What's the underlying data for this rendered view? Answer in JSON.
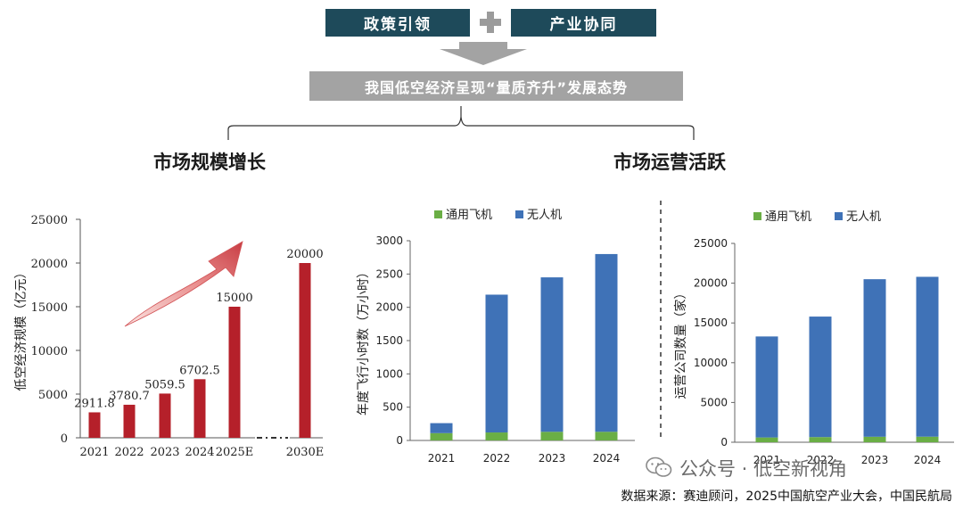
{
  "header": {
    "box_left": "政策引领",
    "box_right": "产业协同",
    "banner": "我国低空经济呈现“量质齐升”发展态势"
  },
  "sections": {
    "left_title": "市场规模增长",
    "right_title": "市场运营活跃"
  },
  "chart_data": [
    {
      "type": "bar",
      "title": "",
      "xlabel": "",
      "ylabel": "低空经济规模（亿元）",
      "categories": [
        "2021",
        "2022",
        "2023",
        "2024",
        "2025E",
        "2030E"
      ],
      "values": [
        2911.8,
        3780.7,
        5059.5,
        6702.5,
        15000,
        20000
      ],
      "data_labels": [
        "2911.8",
        "3780.7",
        "5059.5",
        "6702.5",
        "15000",
        "20000"
      ],
      "ylim": [
        0,
        25000
      ],
      "yticks": [
        "0",
        "5000",
        "10000",
        "15000",
        "20000",
        "25000"
      ],
      "color": "#b5202a",
      "grid": false,
      "axis_break": true
    },
    {
      "type": "bar",
      "stacked": true,
      "title": "",
      "xlabel": "",
      "ylabel": "年度飞行小时数（万小时）",
      "categories": [
        "2021",
        "2022",
        "2023",
        "2024"
      ],
      "series": [
        {
          "name": "通用飞机",
          "values": [
            110,
            120,
            130,
            130
          ],
          "color": "#6aae45"
        },
        {
          "name": "无人机",
          "values": [
            150,
            2070,
            2320,
            2670
          ],
          "color": "#3f72b7"
        }
      ],
      "ylim": [
        0,
        3000
      ],
      "yticks": [
        "0",
        "500",
        "1000",
        "1500",
        "2000",
        "2500",
        "3000"
      ],
      "legend": "top",
      "grid": false
    },
    {
      "type": "bar",
      "stacked": true,
      "title": "",
      "xlabel": "",
      "ylabel": "运营公司数量（家）",
      "categories": [
        "2021",
        "2022",
        "2023",
        "2024"
      ],
      "series": [
        {
          "name": "通用飞机",
          "values": [
            600,
            650,
            690,
            700
          ],
          "color": "#6aae45"
        },
        {
          "name": "无人机",
          "values": [
            12700,
            15150,
            19810,
            20100
          ],
          "color": "#3f72b7"
        }
      ],
      "ylim": [
        0,
        25000
      ],
      "yticks": [
        "0",
        "5000",
        "10000",
        "15000",
        "20000",
        "25000"
      ],
      "legend": "top",
      "grid": false
    }
  ],
  "watermark": {
    "text": "公众号 · 低空新视角",
    "icon": "wechat-icon"
  },
  "source": "数据来源：赛迪顾问，2025中国航空产业大会，中国民航局"
}
